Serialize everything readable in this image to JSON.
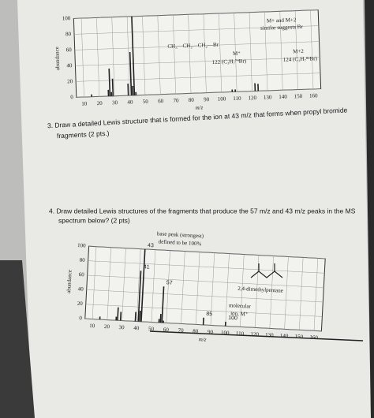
{
  "questions": [
    {
      "line1": "3.  Draw a detailed Lewis structure that is formed for the ion at 43 m/z that forms when propyl bromide",
      "line2": "fragments (2 pts.)"
    },
    {
      "line1": "4.  Draw detailed Lewis structures of the fragments that produce the 57 m/z and 43 m/z peaks in the MS",
      "line2": "spectrum below? (2 pts)"
    }
  ],
  "chart_data": [
    {
      "type": "stick",
      "xlabel": "m/z",
      "ylabel": "abundance",
      "color": "#222222",
      "x": [
        15,
        26,
        27,
        28,
        29,
        39,
        41,
        42,
        43,
        44,
        107,
        109,
        122,
        124
      ],
      "values": [
        3,
        8,
        35,
        5,
        22,
        15,
        55,
        12,
        100,
        4,
        3,
        3,
        10,
        9
      ],
      "xlim": [
        5,
        165
      ],
      "xticks": [
        10,
        20,
        30,
        40,
        50,
        60,
        70,
        80,
        90,
        100,
        110,
        120,
        130,
        140,
        150,
        160
      ],
      "ylim": [
        0,
        100
      ],
      "yticks": [
        0,
        20,
        40,
        60,
        80,
        100
      ],
      "grid": true,
      "annotations": [
        "CH₃—CH₂—CH₂—Br",
        "M+ and M+2",
        "similar suggests Br",
        "M⁺",
        "122 (C₃H₇⁷⁹Br)",
        "M+2",
        "124 (C₃H₇⁸¹Br)"
      ]
    },
    {
      "type": "stick",
      "xlabel": "m/z",
      "ylabel": "abundance",
      "color": "#222222",
      "x": [
        15,
        26,
        27,
        29,
        39,
        41,
        42,
        43,
        55,
        56,
        57,
        58,
        85,
        100
      ],
      "values": [
        4,
        5,
        18,
        12,
        13,
        70,
        15,
        100,
        5,
        12,
        50,
        3,
        10,
        6
      ],
      "xlim": [
        5,
        165
      ],
      "xticks": [
        10,
        20,
        30,
        40,
        50,
        60,
        70,
        80,
        90,
        100,
        110,
        120,
        130,
        140,
        150,
        160
      ],
      "ylim": [
        0,
        100
      ],
      "yticks": [
        0,
        20,
        40,
        60,
        80,
        100
      ],
      "grid": true,
      "peak_labels": [
        41,
        43,
        57,
        85,
        100
      ],
      "annotations": [
        "base peak (strongest)",
        "defined to be 100%",
        "2,4-dimethylpentane",
        "molecular",
        "ion, M⁺"
      ]
    }
  ]
}
